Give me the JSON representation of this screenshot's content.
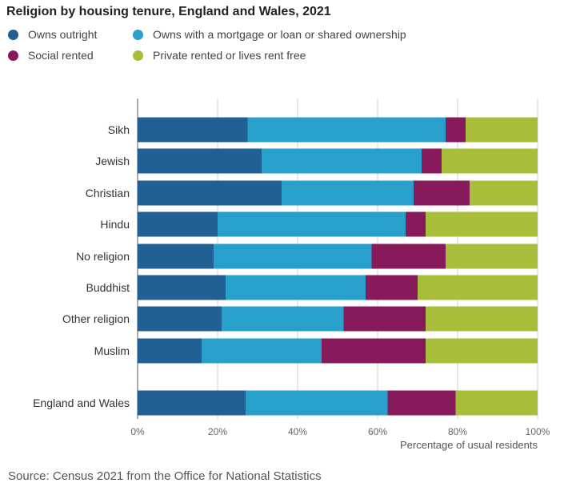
{
  "source_text": "Source: Census 2021 from the Office for National Statistics",
  "chart_data": {
    "type": "bar",
    "orientation": "horizontal",
    "stacked": true,
    "title": "Religion by housing tenure, England and Wales, 2021",
    "xlabel": "Percentage of usual residents",
    "ylabel": "",
    "xlim": [
      0,
      100
    ],
    "x_ticks": [
      "0%",
      "20%",
      "40%",
      "60%",
      "80%",
      "100%"
    ],
    "grid": true,
    "legend_position": "top",
    "categories": [
      "Sikh",
      "Jewish",
      "Christian",
      "Hindu",
      "No religion",
      "Buddhist",
      "Other religion",
      "Muslim",
      "England and Wales"
    ],
    "series": [
      {
        "name": "Owns outright",
        "color": "#206095",
        "values": [
          27.5,
          31,
          36,
          20,
          19,
          22,
          21,
          16,
          27
        ]
      },
      {
        "name": "Owns with a mortgage or loan or shared ownership",
        "color": "#27a0cc",
        "values": [
          49.5,
          40,
          33,
          47,
          39.5,
          35,
          30.5,
          30,
          35.5
        ]
      },
      {
        "name": "Social rented",
        "color": "#871a5b",
        "values": [
          5,
          5,
          14,
          5,
          18.5,
          13,
          20.5,
          26,
          17
        ]
      },
      {
        "name": "Private rented or lives rent free",
        "color": "#a8bd3a",
        "values": [
          18,
          24,
          17,
          28,
          23,
          30,
          28,
          28,
          20.5
        ]
      }
    ]
  }
}
